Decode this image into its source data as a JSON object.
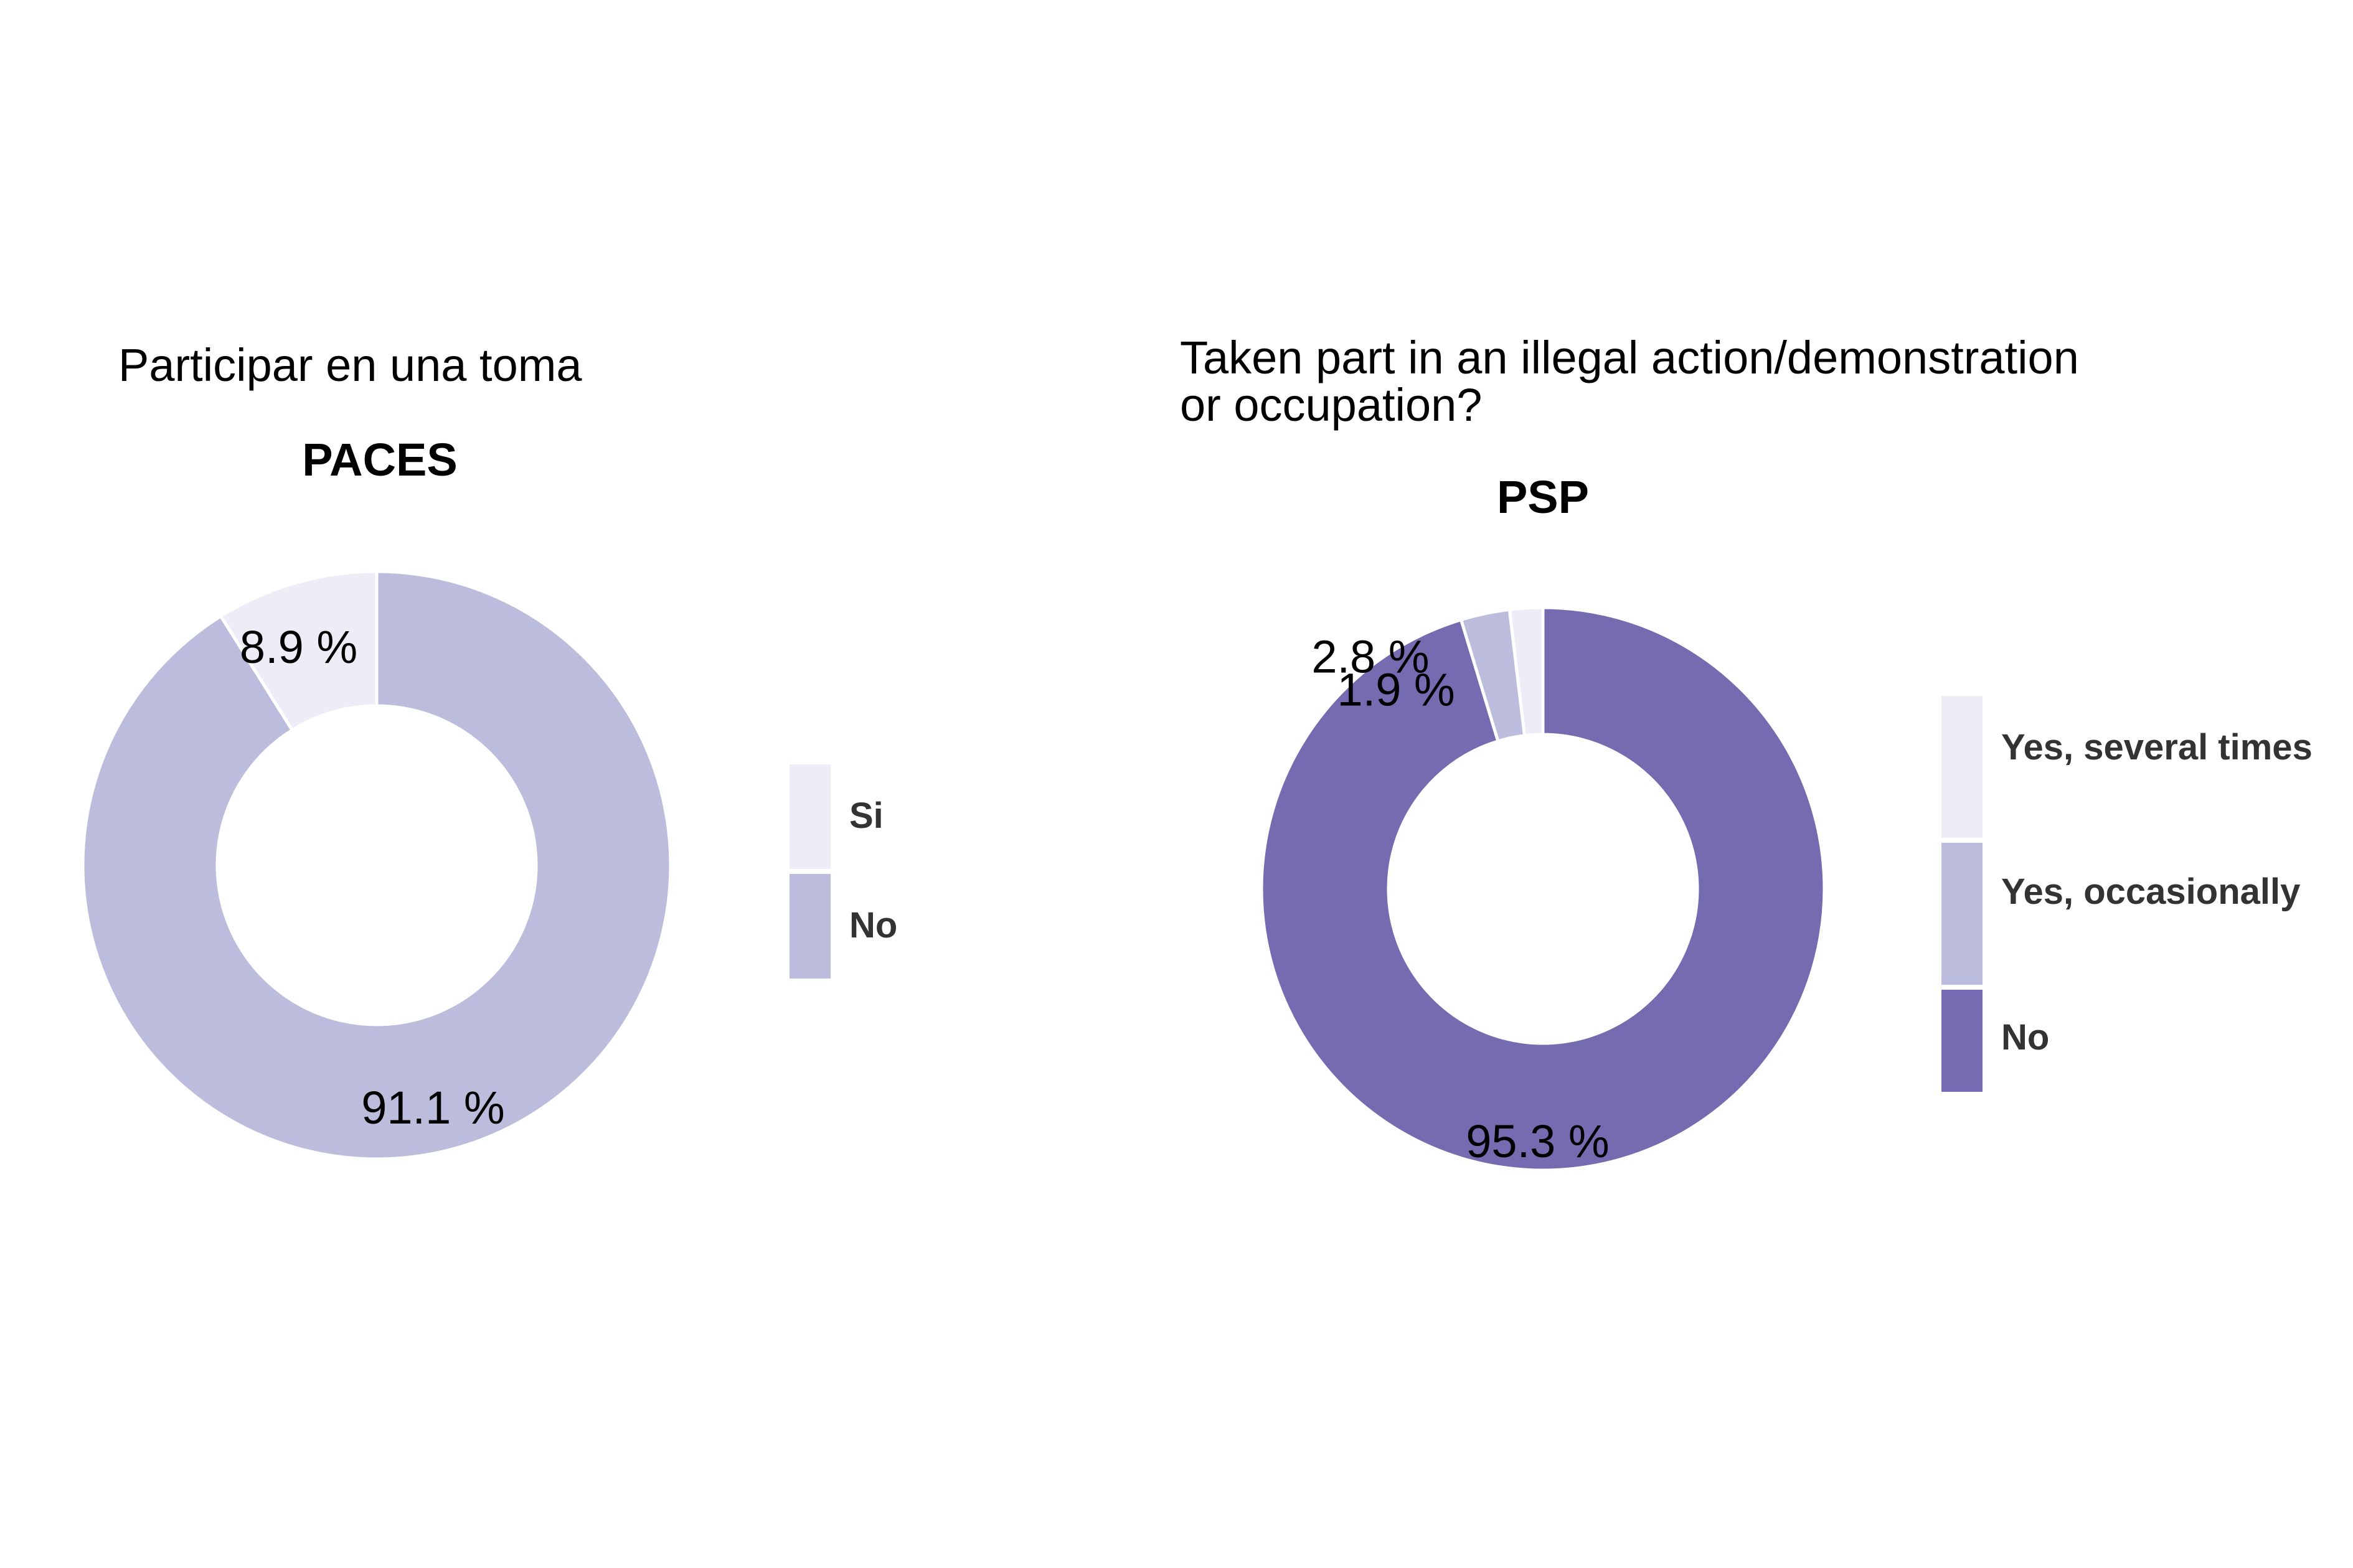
{
  "chart_data": [
    {
      "type": "pie",
      "variant": "donut",
      "question": "Participar en una toma",
      "title": "PACES",
      "slices": [
        {
          "label": "Si",
          "value": 8.9,
          "value_label": "8.9 %",
          "color": "#eeecf6"
        },
        {
          "label": "No",
          "value": 91.1,
          "value_label": "91.1 %",
          "color": "#bcbddc"
        }
      ],
      "legend_position": "right"
    },
    {
      "type": "pie",
      "variant": "donut",
      "question_lines": [
        "Taken part in an illegal action/demonstration",
        "or occupation?"
      ],
      "title": "PSP",
      "slices": [
        {
          "label": "Yes, several times",
          "value": 1.9,
          "value_label": "1.9 %",
          "color": "#eeecf6"
        },
        {
          "label": "Yes, occasionally",
          "value": 2.8,
          "value_label": "2.8 %",
          "color": "#bcbddc"
        },
        {
          "label": "No",
          "value": 95.3,
          "value_label": "95.3 %",
          "color": "#756bb1"
        }
      ],
      "legend_position": "right"
    }
  ]
}
